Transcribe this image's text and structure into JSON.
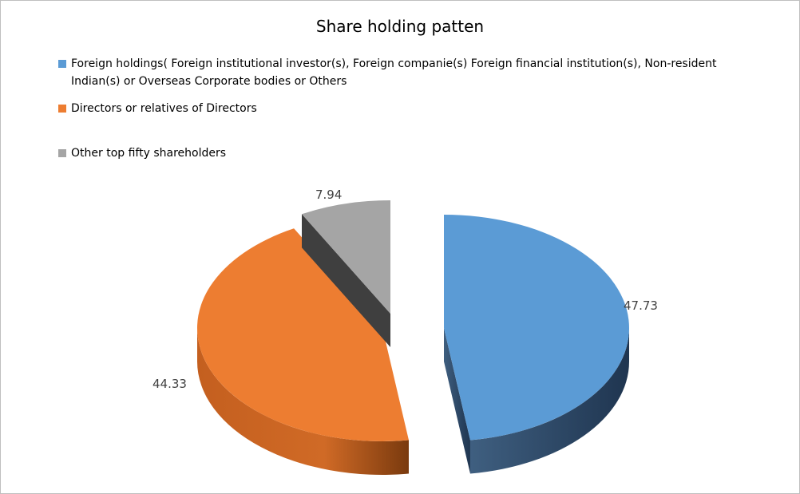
{
  "chart_data": {
    "type": "pie",
    "title": "Share holding patten",
    "legend_position": "top",
    "slices": [
      {
        "label": "Foreign holdings( Foreign institutional investor(s), Foreign companie(s) Foreign financial institution(s),  Non-resident Indian(s) or Overseas Corporate bodies or Others",
        "value": 47.73,
        "value_label": "47.73",
        "color": "#5B9BD5"
      },
      {
        "label": "Directors or relatives of Directors",
        "value": 44.33,
        "value_label": "44.33",
        "color": "#ED7D31"
      },
      {
        "label": "Other top fifty shareholders",
        "value": 7.94,
        "value_label": "7.94",
        "color": "#A5A5A5"
      }
    ]
  }
}
